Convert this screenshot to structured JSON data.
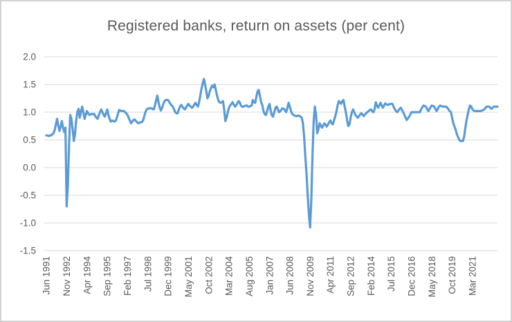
{
  "chart_data": {
    "type": "line",
    "title": "Registered banks, return on assets (per cent)",
    "xlabel": "",
    "ylabel": "",
    "ylim": [
      -1.5,
      2.0
    ],
    "y_ticks": [
      2.0,
      1.5,
      1.0,
      0.5,
      0.0,
      -0.5,
      -1.0,
      -1.5
    ],
    "y_tick_labels": [
      "2.0",
      "1.5",
      "1.0",
      "0.5",
      "0.0",
      "-0.5",
      "-1.0",
      "-1.5"
    ],
    "grid": "horizontal",
    "legend": "none",
    "gridline_color": "#d9d9d9",
    "axis_text_color": "#595959",
    "title_color": "#595959",
    "x_tick_labels": [
      "Jun 1991",
      "Nov 1992",
      "Apr 1994",
      "Sep 1995",
      "Feb 1997",
      "Jul 1998",
      "Dec 1999",
      "May 2001",
      "Oct 2002",
      "Mar 2004",
      "Aug 2005",
      "Jan 2007",
      "Jun 2008",
      "Nov 2009",
      "Apr 2011",
      "Sep 2012",
      "Feb 2014",
      "Jul 2015",
      "Dec 2016",
      "May 2018",
      "Oct 2019",
      "Mar 2021"
    ],
    "x_tick_month_offsets": [
      0,
      17,
      34,
      51,
      68,
      85,
      102,
      119,
      136,
      153,
      170,
      187,
      204,
      221,
      238,
      255,
      272,
      289,
      306,
      323,
      340,
      357
    ],
    "total_months": 378,
    "x_start": "Jun 1991",
    "frequency": "monthly",
    "series": [
      {
        "color": "#5b9bd5",
        "values": [
          0.58,
          0.58,
          0.57,
          0.58,
          0.58,
          0.6,
          0.62,
          0.68,
          0.78,
          0.88,
          0.76,
          0.66,
          0.74,
          0.84,
          0.72,
          0.64,
          0.72,
          -0.7,
          -0.35,
          0.4,
          0.95,
          0.88,
          0.7,
          0.48,
          0.6,
          0.85,
          1.0,
          1.06,
          0.9,
          1.0,
          1.1,
          1.0,
          0.88,
          0.95,
          1.02,
          0.98,
          0.95,
          0.96,
          0.97,
          0.96,
          0.97,
          0.93,
          0.9,
          0.88,
          0.95,
          1.0,
          1.05,
          1.0,
          0.95,
          0.92,
          0.98,
          1.05,
          0.95,
          0.88,
          0.83,
          0.85,
          0.84,
          0.83,
          0.84,
          0.9,
          0.97,
          1.04,
          1.03,
          1.02,
          1.02,
          1.02,
          1.0,
          0.98,
          0.95,
          0.9,
          0.85,
          0.8,
          0.83,
          0.86,
          0.87,
          0.84,
          0.82,
          0.8,
          0.81,
          0.82,
          0.82,
          0.85,
          0.92,
          1.0,
          1.05,
          1.06,
          1.07,
          1.07,
          1.07,
          1.06,
          1.05,
          1.12,
          1.22,
          1.3,
          1.18,
          1.08,
          1.03,
          1.08,
          1.15,
          1.2,
          1.22,
          1.22,
          1.22,
          1.18,
          1.15,
          1.12,
          1.1,
          1.05,
          1.0,
          0.98,
          0.98,
          1.05,
          1.1,
          1.13,
          1.1,
          1.07,
          1.05,
          1.08,
          1.12,
          1.15,
          1.12,
          1.1,
          1.08,
          1.1,
          1.14,
          1.17,
          1.13,
          1.1,
          1.18,
          1.3,
          1.42,
          1.52,
          1.6,
          1.5,
          1.38,
          1.25,
          1.3,
          1.38,
          1.44,
          1.48,
          1.45,
          1.5,
          1.4,
          1.3,
          1.22,
          1.18,
          1.17,
          1.18,
          1.2,
          1.05,
          0.84,
          0.9,
          1.0,
          1.08,
          1.12,
          1.15,
          1.18,
          1.14,
          1.1,
          1.12,
          1.16,
          1.2,
          1.18,
          1.12,
          1.1,
          1.1,
          1.11,
          1.12,
          1.12,
          1.1,
          1.1,
          1.11,
          1.12,
          1.22,
          1.18,
          1.17,
          1.28,
          1.38,
          1.4,
          1.28,
          1.18,
          1.12,
          1.02,
          0.96,
          0.95,
          1.02,
          1.1,
          1.15,
          1.02,
          0.94,
          0.92,
          1.0,
          1.08,
          1.1,
          1.05,
          1.0,
          1.02,
          1.05,
          1.07,
          1.06,
          1.03,
          1.0,
          1.08,
          1.17,
          1.1,
          1.02,
          0.97,
          0.95,
          0.94,
          0.93,
          0.93,
          0.94,
          0.93,
          0.92,
          0.9,
          0.8,
          0.55,
          0.2,
          -0.1,
          -0.5,
          -0.85,
          -1.08,
          -0.6,
          0.2,
          0.85,
          1.1,
          0.95,
          0.62,
          0.7,
          0.8,
          0.76,
          0.72,
          0.76,
          0.8,
          0.77,
          0.74,
          0.78,
          0.82,
          0.85,
          0.8,
          0.78,
          0.85,
          0.92,
          1.0,
          1.12,
          1.2,
          1.18,
          1.15,
          1.2,
          1.22,
          1.1,
          1.0,
          0.85,
          0.75,
          0.78,
          0.9,
          1.0,
          1.05,
          1.0,
          0.95,
          0.92,
          0.9,
          0.93,
          0.96,
          0.98,
          0.95,
          0.93,
          0.96,
          0.98,
          1.0,
          1.02,
          1.04,
          1.05,
          1.02,
          1.0,
          1.05,
          1.18,
          1.12,
          1.08,
          1.12,
          1.17,
          1.12,
          1.08,
          1.12,
          1.16,
          1.14,
          1.13,
          1.14,
          1.15,
          1.15,
          1.15,
          1.1,
          1.05,
          1.02,
          1.0,
          1.03,
          1.06,
          1.08,
          1.04,
          1.0,
          0.95,
          0.9,
          0.86,
          0.89,
          0.92,
          0.96,
          1.0,
          1.0,
          1.0,
          1.0,
          1.0,
          1.0,
          1.0,
          1.0,
          1.05,
          1.09,
          1.12,
          1.11,
          1.1,
          1.06,
          1.02,
          1.05,
          1.09,
          1.12,
          1.11,
          1.1,
          1.06,
          1.02,
          1.06,
          1.1,
          1.12,
          1.11,
          1.1,
          1.1,
          1.1,
          1.1,
          1.08,
          1.05,
          1.02,
          1.0,
          0.9,
          0.8,
          0.74,
          0.68,
          0.6,
          0.55,
          0.5,
          0.48,
          0.48,
          0.48,
          0.55,
          0.7,
          0.85,
          0.95,
          1.05,
          1.12,
          1.1,
          1.05,
          1.03,
          1.02,
          1.02,
          1.02,
          1.02,
          1.02,
          1.02,
          1.03,
          1.04,
          1.05,
          1.08,
          1.1,
          1.1,
          1.1,
          1.08,
          1.06,
          1.08,
          1.1,
          1.1,
          1.1,
          1.1
        ]
      }
    ]
  }
}
